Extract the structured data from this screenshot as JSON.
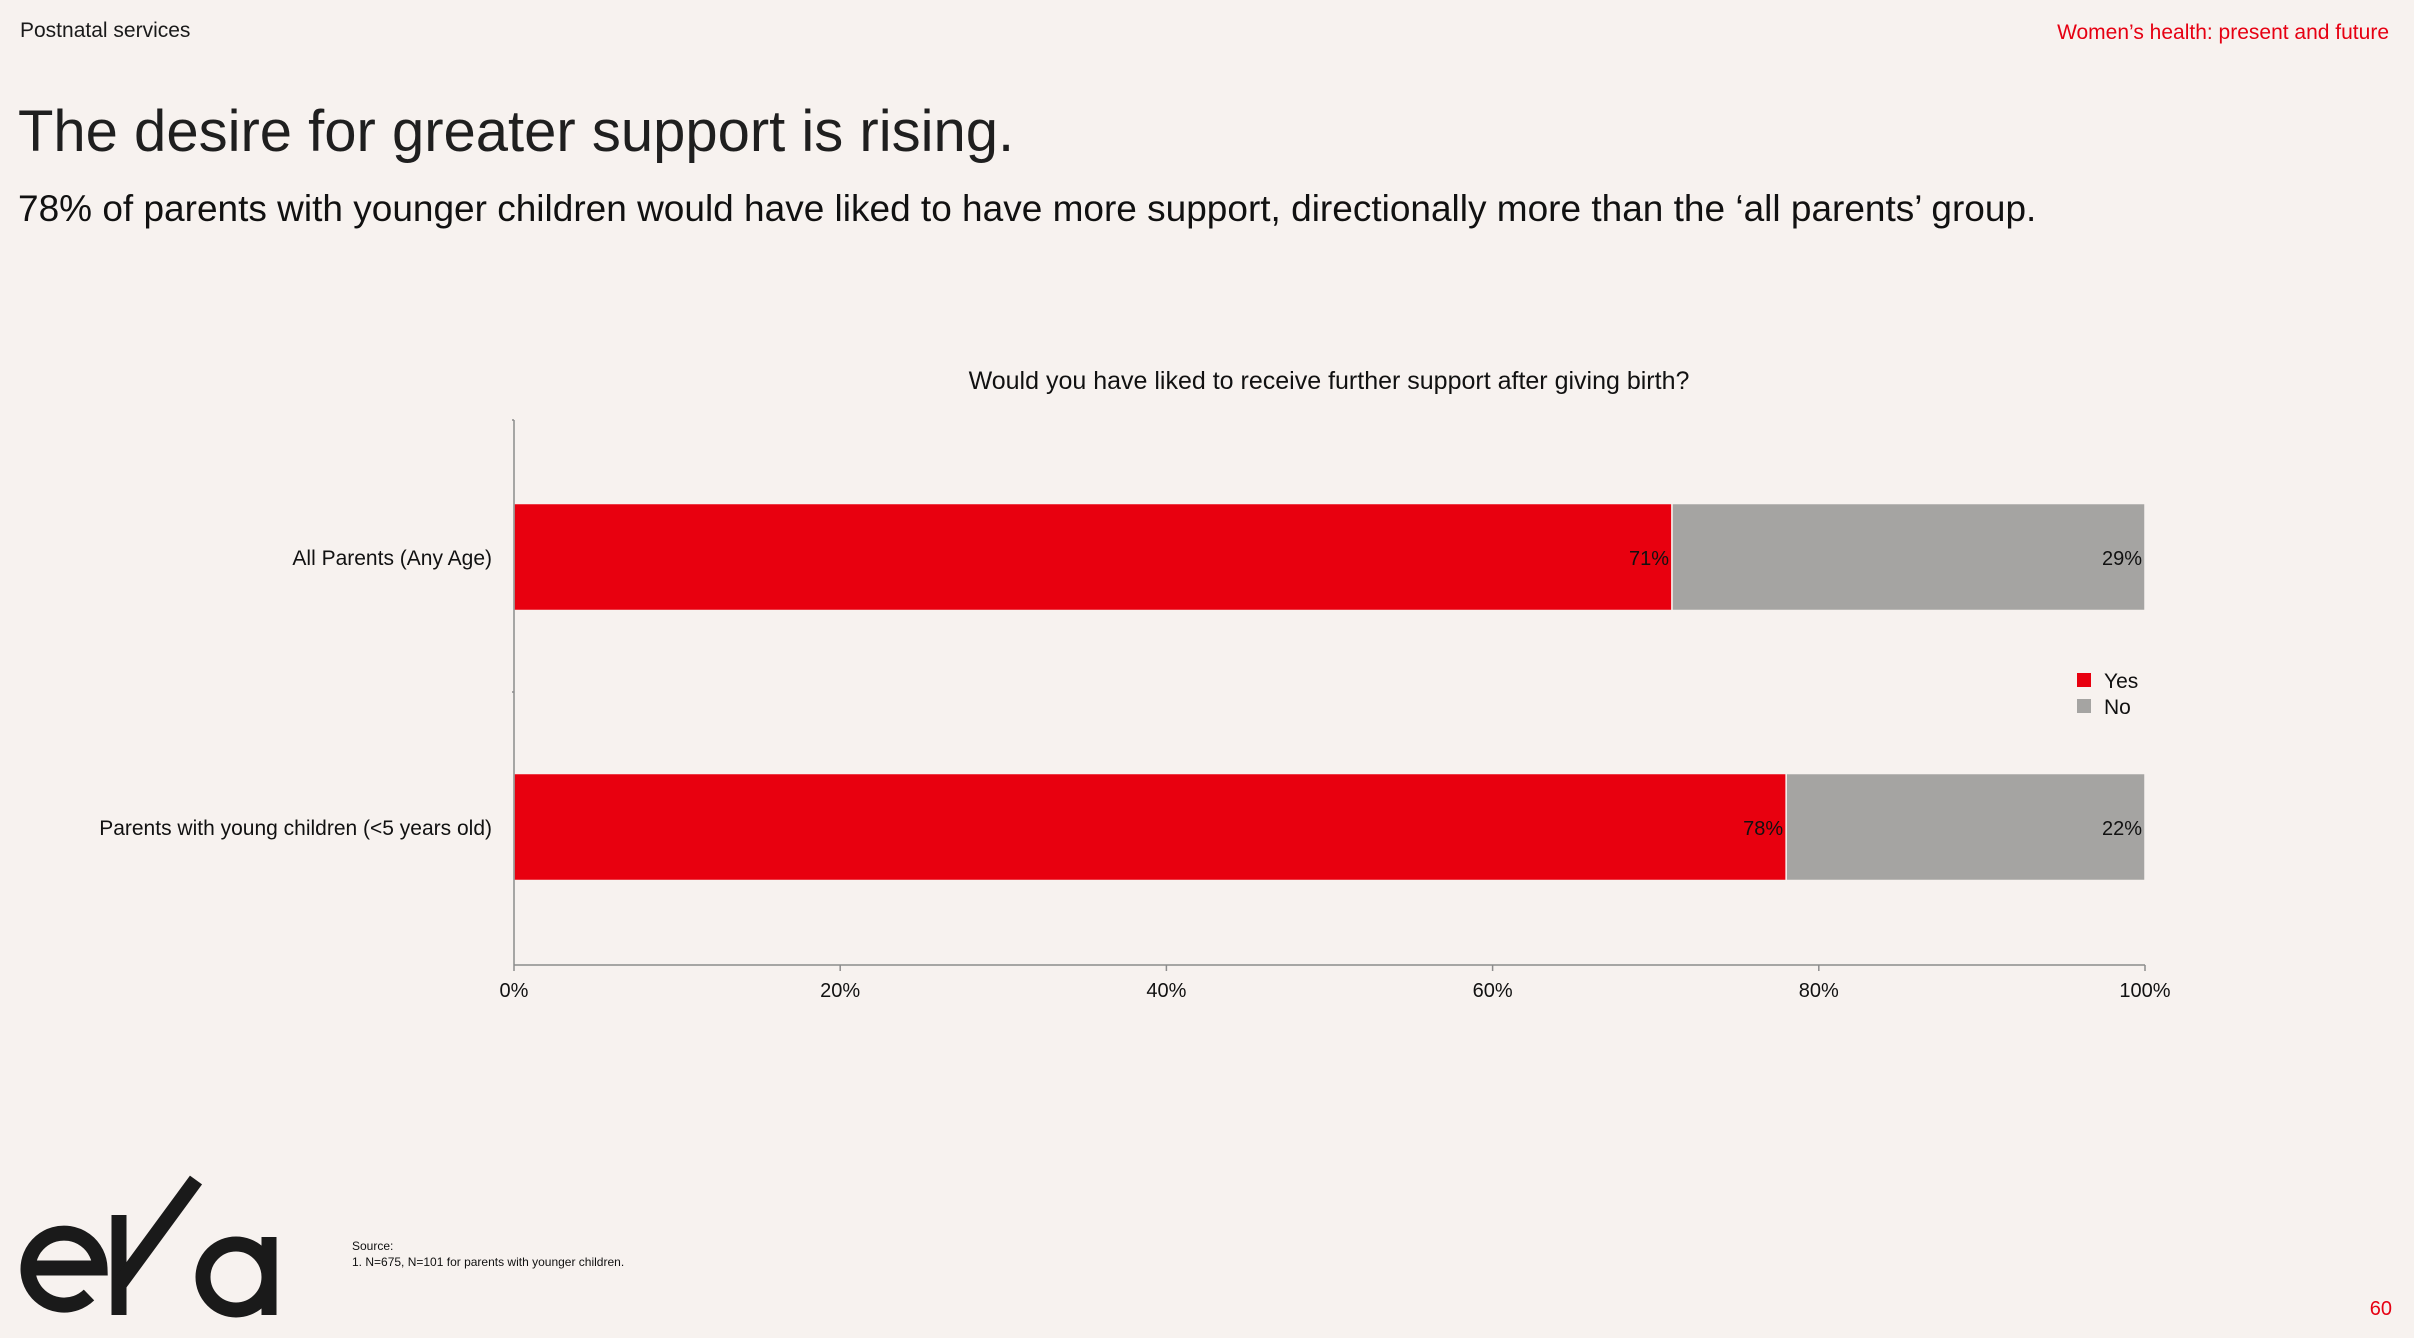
{
  "header": {
    "section_label": "Postnatal services",
    "deck_title": "Women’s health: present and future"
  },
  "headline": "The desire for greater support is rising.",
  "subhead": "78% of parents with younger children would have liked to have more support, directionally more than the ‘all parents’ group.",
  "chart_data": {
    "type": "bar",
    "orientation": "horizontal",
    "stacked": true,
    "title": "Would you have liked to receive further support after giving birth?",
    "categories": [
      "All Parents (Any Age)",
      "Parents with young children (<5 years old)"
    ],
    "series": [
      {
        "name": "Yes",
        "values": [
          71,
          78
        ],
        "labels": [
          "71%",
          "78%"
        ],
        "color": "#e8000f"
      },
      {
        "name": "No",
        "values": [
          29,
          22
        ],
        "labels": [
          "29%",
          "22%"
        ],
        "color": "#a5a4a2"
      }
    ],
    "xlim": [
      0,
      100
    ],
    "x_ticks": [
      0,
      20,
      40,
      60,
      80,
      100
    ],
    "x_tick_labels": [
      "0%",
      "20%",
      "40%",
      "60%",
      "80%",
      "100%"
    ],
    "xlabel": "",
    "ylabel": "",
    "legend_position": "right",
    "grid": false
  },
  "logo": {
    "text": "eka",
    "icon": "eka-logo"
  },
  "source": {
    "heading": "Source:",
    "notes": [
      "1.    N=675, N=101 for parents with younger children."
    ]
  },
  "page_number": "60"
}
